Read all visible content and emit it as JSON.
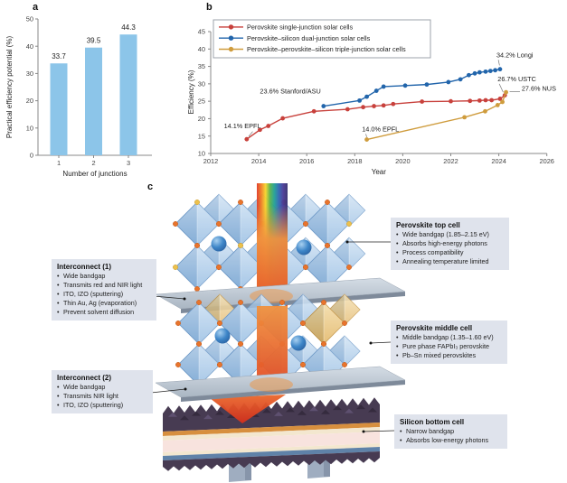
{
  "figure": {
    "panel_labels": {
      "a": "a",
      "b": "b",
      "c": "c"
    }
  },
  "chart_data": [
    {
      "id": "a",
      "type": "bar",
      "categories": [
        "1",
        "2",
        "3"
      ],
      "values": [
        33.7,
        39.5,
        44.3
      ],
      "value_labels": [
        "33.7",
        "39.5",
        "44.3"
      ],
      "xlabel": "Number of junctions",
      "ylabel": "Practical efficiency potential (%)",
      "ylim": [
        0,
        50
      ],
      "yticks": [
        0,
        10,
        20,
        30,
        40,
        50
      ],
      "grid": false,
      "bar_color": "#8cc5e9"
    },
    {
      "id": "b",
      "type": "line",
      "xlabel": "Year",
      "ylabel": "Efficiency (%)",
      "xlim": [
        2012,
        2026
      ],
      "xticks": [
        2012,
        2014,
        2016,
        2018,
        2020,
        2022,
        2024,
        2026
      ],
      "ylim": [
        10,
        45
      ],
      "yticks": [
        10,
        15,
        20,
        25,
        30,
        35,
        40,
        45
      ],
      "grid": false,
      "legend_position": "top-left-inside",
      "series": [
        {
          "name": "Perovskite single-junction solar cells",
          "color": "#c8413c",
          "points": [
            [
              2013.5,
              14.1
            ],
            [
              2014.05,
              16.8
            ],
            [
              2014.4,
              17.9
            ],
            [
              2015.0,
              20.1
            ],
            [
              2016.3,
              22.1
            ],
            [
              2017.7,
              22.7
            ],
            [
              2018.35,
              23.3
            ],
            [
              2018.8,
              23.6
            ],
            [
              2019.2,
              23.8
            ],
            [
              2019.6,
              24.2
            ],
            [
              2020.8,
              24.9
            ],
            [
              2022.0,
              25.0
            ],
            [
              2022.8,
              25.1
            ],
            [
              2023.2,
              25.2
            ],
            [
              2023.45,
              25.3
            ],
            [
              2023.7,
              25.3
            ],
            [
              2024.05,
              25.7
            ],
            [
              2024.25,
              26.7
            ]
          ]
        },
        {
          "name": "Perovskite–silicon dual-junction solar cells",
          "color": "#2265ab",
          "points": [
            [
              2016.7,
              23.6
            ],
            [
              2018.2,
              25.2
            ],
            [
              2018.5,
              26.3
            ],
            [
              2018.9,
              28.0
            ],
            [
              2019.2,
              29.2
            ],
            [
              2020.1,
              29.5
            ],
            [
              2021.0,
              29.8
            ],
            [
              2021.9,
              30.5
            ],
            [
              2022.4,
              31.3
            ],
            [
              2022.75,
              32.5
            ],
            [
              2023.0,
              33.0
            ],
            [
              2023.2,
              33.3
            ],
            [
              2023.45,
              33.5
            ],
            [
              2023.65,
              33.7
            ],
            [
              2023.85,
              33.9
            ],
            [
              2024.05,
              34.2
            ]
          ]
        },
        {
          "name": "Perovskite–perovskite–silicon triple-junction solar cells",
          "color": "#cf9c3d",
          "points": [
            [
              2018.5,
              14.0
            ],
            [
              2022.57,
              20.4
            ],
            [
              2023.43,
              22.1
            ],
            [
              2023.95,
              23.9
            ],
            [
              2024.15,
              24.8
            ],
            [
              2024.3,
              27.6
            ]
          ]
        }
      ],
      "annotations": [
        {
          "text": "14.1% EPFL",
          "x": 2012.55,
          "y": 17.2,
          "leader": [
            2013.75,
            16.3,
            2013.58,
            14.9
          ]
        },
        {
          "text": "23.6% Stanford/ASU",
          "x": 2014.05,
          "y": 27.3
        },
        {
          "text": "14.0% EPFL",
          "x": 2018.3,
          "y": 16.4,
          "leader": [
            2018.46,
            15.6,
            2018.5,
            14.7
          ]
        },
        {
          "text": "34.2% Longi",
          "x": 2023.9,
          "y": 37.6,
          "leader": [
            2023.98,
            36.9,
            2024.03,
            35.3
          ]
        },
        {
          "text": "26.7% USTC",
          "x": 2023.95,
          "y": 30.7,
          "leader": [
            2024.02,
            30.0,
            2024.18,
            27.6
          ]
        },
        {
          "text": "27.6% NUS",
          "x": 2024.95,
          "y": 28.0,
          "leader": [
            2024.45,
            27.75,
            2024.88,
            27.75
          ]
        }
      ]
    }
  ],
  "panel_c": {
    "boxes": {
      "top_cell": {
        "title": "Perovskite top cell",
        "bullets": [
          "Wide bandgap (1.85–2.15 eV)",
          "Absorbs high-energy photons",
          "Process compatibility",
          "Annealing temperature limited"
        ]
      },
      "middle_cell": {
        "title": "Perovskite middle cell",
        "bullets": [
          "Middle bandgap (1.35–1.60 eV)",
          "Pure phase FAPbI₃ perovskite",
          "Pb–Sn mixed perovskites"
        ]
      },
      "bottom_cell": {
        "title": "Silicon bottom cell",
        "bullets": [
          "Narrow bandgap",
          "Absorbs low-energy photons"
        ]
      },
      "interconnect1": {
        "title": "Interconnect (1)",
        "bullets": [
          "Wide bandgap",
          "Transmits red and NIR light",
          "ITO, IZO (sputtering)",
          "Thin Au, Ag (evaporation)",
          "Prevent solvent diffusion"
        ]
      },
      "interconnect2": {
        "title": "Interconnect (2)",
        "bullets": [
          "Wide bandgap",
          "Transmits NIR light",
          "ITO, IZO (sputtering)"
        ]
      }
    },
    "diagram": {
      "beam_rainbow": [
        "#e03a28",
        "#f07f23",
        "#f6d42a",
        "#59b24a",
        "#1f9f96",
        "#2f66b2",
        "#4a3a96",
        "#35306e"
      ],
      "beam_orange_top": "#f0923f",
      "beam_orange_bottom": "#e45428",
      "cone_top": "#ea6a2e",
      "cone_bottom": "#d32f1d",
      "octahedron_blue_light": "#c7ddf2",
      "octahedron_blue_dark": "#8fb8e0",
      "octahedron_edge": "#6d99c8",
      "octahedron_gold_light": "#f2d9a0",
      "octahedron_gold_dark": "#dfae55",
      "corner_dot_orange": "#e8742c",
      "corner_dot_yellow": "#ecc14d",
      "cation_sphere": "#3e86c8",
      "slab_light": "#d4dce5",
      "slab_dark": "#aab6c3",
      "slab_edge": "#7e8a9a",
      "silicon_dark": "#473b52",
      "silicon_orange": "#d78f3e",
      "silicon_cream": "#f3e7cf",
      "silicon_pink": "#f8e3de",
      "silicon_blue": "#5f82a8",
      "leg_gray": "#9fadc0"
    }
  }
}
